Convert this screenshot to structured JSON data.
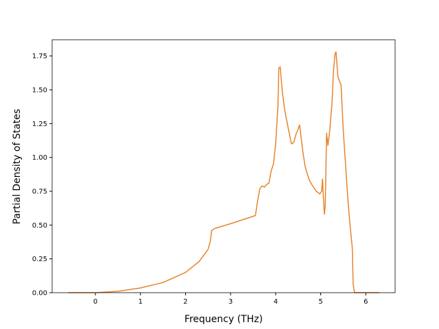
{
  "chart_data": {
    "type": "line",
    "xlabel": "Frequency (THz)",
    "ylabel": "Partial Density of States",
    "x": [
      -0.6,
      0.0,
      0.5,
      1.0,
      1.5,
      2.0,
      2.3,
      2.5,
      2.55,
      2.58,
      2.65,
      3.0,
      3.55,
      3.6,
      3.65,
      3.7,
      3.75,
      3.8,
      3.85,
      3.9,
      3.95,
      4.0,
      4.05,
      4.07,
      4.1,
      4.15,
      4.2,
      4.3,
      4.35,
      4.4,
      4.45,
      4.5,
      4.53,
      4.55,
      4.6,
      4.65,
      4.7,
      4.75,
      4.8,
      4.9,
      4.98,
      5.02,
      5.04,
      5.06,
      5.08,
      5.1,
      5.13,
      5.16,
      5.2,
      5.25,
      5.28,
      5.32,
      5.34,
      5.38,
      5.42,
      5.45,
      5.5,
      5.55,
      5.6,
      5.65,
      5.7,
      5.72,
      5.75,
      6.3
    ],
    "series": [
      {
        "color": "#e8832a",
        "values": [
          0,
          0,
          0.01,
          0.035,
          0.075,
          0.15,
          0.23,
          0.32,
          0.38,
          0.46,
          0.475,
          0.51,
          0.57,
          0.68,
          0.77,
          0.79,
          0.78,
          0.8,
          0.81,
          0.9,
          0.95,
          1.1,
          1.38,
          1.66,
          1.67,
          1.48,
          1.35,
          1.18,
          1.1,
          1.11,
          1.17,
          1.21,
          1.24,
          1.19,
          1.05,
          0.94,
          0.88,
          0.83,
          0.8,
          0.75,
          0.73,
          0.75,
          0.84,
          0.7,
          0.58,
          0.64,
          1.18,
          1.09,
          1.2,
          1.4,
          1.63,
          1.77,
          1.78,
          1.6,
          1.56,
          1.54,
          1.2,
          0.95,
          0.7,
          0.5,
          0.33,
          0.06,
          0,
          0
        ]
      }
    ],
    "xlim": [
      -0.96,
      6.65
    ],
    "ylim": [
      0,
      1.87
    ],
    "xticks": [
      0,
      1,
      2,
      3,
      4,
      5,
      6
    ],
    "yticks": [
      {
        "value": 0,
        "label": "0.00"
      },
      {
        "value": 0.25,
        "label": "0.25"
      },
      {
        "value": 0.5,
        "label": "0.50"
      },
      {
        "value": 0.75,
        "label": "0.75"
      },
      {
        "value": 1,
        "label": "1.00"
      },
      {
        "value": 1.25,
        "label": "1.25"
      },
      {
        "value": 1.5,
        "label": "1.50"
      },
      {
        "value": 1.75,
        "label": "1.75"
      }
    ]
  }
}
